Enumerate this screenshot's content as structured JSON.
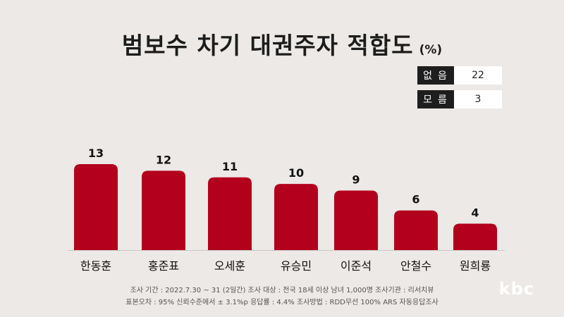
{
  "title": "범보수 차기 대권주자 적합도",
  "unit": "(%)",
  "side_stats": [
    {
      "label": "없음",
      "value": "22"
    },
    {
      "label": "모름",
      "value": "3"
    }
  ],
  "chart_data": {
    "type": "bar",
    "categories": [
      "한동훈",
      "홍준표",
      "오세훈",
      "유승민",
      "이준석",
      "안철수",
      "원희룡"
    ],
    "values": [
      13,
      12,
      11,
      10,
      9,
      6,
      4
    ],
    "data_labels": [
      "13",
      "12",
      "11",
      "10",
      "9",
      "6",
      "4"
    ],
    "ylim": [
      0,
      13
    ],
    "grid": false,
    "colors": {
      "bar": "#b3001d",
      "baseline": "#c9c6c3"
    }
  },
  "footer": {
    "line1": "조사 기간 : 2022.7.30 ~ 31 (2일간)   조사 대상 : 전국 18세 이상 남녀 1,000명   조사기관 : 리서치뷰",
    "line2": "표본오차 : 95% 신뢰수준에서 ± 3.1%p   응답률 : 4.4%   조사방법 : RDD무선 100% ARS 자동응답조사"
  },
  "logo": "kbc"
}
